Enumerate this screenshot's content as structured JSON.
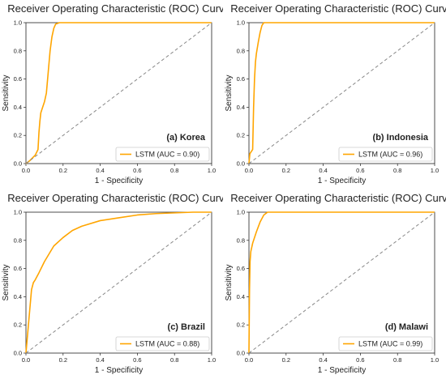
{
  "chart_data": [
    {
      "type": "line",
      "title": "Receiver Operating Characteristic (ROC) Curve",
      "xlabel": "1 - Specificity",
      "ylabel": "Sensitivity",
      "xlim": [
        0,
        1
      ],
      "ylim": [
        0,
        1
      ],
      "xticks": [
        "0.0",
        "0.2",
        "0.4",
        "0.6",
        "0.8",
        "1.0"
      ],
      "yticks": [
        "0.0",
        "0.2",
        "0.4",
        "0.6",
        "0.8",
        "1.0"
      ],
      "annotation": "(a) Korea",
      "legend_position": "bottom-right",
      "series": [
        {
          "name": "LSTM (AUC = 0.90)",
          "color": "#FFA500",
          "x": [
            0,
            0.02,
            0.05,
            0.065,
            0.07,
            0.075,
            0.08,
            0.09,
            0.1,
            0.11,
            0.12,
            0.13,
            0.14,
            0.15,
            0.16,
            0.18,
            0.2,
            0.3,
            1.0
          ],
          "y": [
            0,
            0.02,
            0.06,
            0.1,
            0.22,
            0.3,
            0.36,
            0.4,
            0.44,
            0.5,
            0.65,
            0.8,
            0.9,
            0.96,
            0.99,
            1.0,
            1.0,
            1.0,
            1.0
          ]
        },
        {
          "name": "",
          "color": "#888888",
          "style": "dashed",
          "x": [
            0,
            1
          ],
          "y": [
            0,
            1
          ]
        }
      ]
    },
    {
      "type": "line",
      "title": "Receiver Operating Characteristic (ROC) Curve",
      "xlabel": "1 - Specificity",
      "ylabel": "Sensitivity",
      "xlim": [
        0,
        1
      ],
      "ylim": [
        0,
        1
      ],
      "xticks": [
        "0.0",
        "0.2",
        "0.4",
        "0.6",
        "0.8",
        "1.0"
      ],
      "yticks": [
        "0.0",
        "0.2",
        "0.4",
        "0.6",
        "0.8",
        "1.0"
      ],
      "annotation": "(b) Indonesia",
      "legend_position": "bottom-right",
      "series": [
        {
          "name": "LSTM (AUC = 0.96)",
          "color": "#FFA500",
          "x": [
            0,
            0.005,
            0.01,
            0.02,
            0.025,
            0.03,
            0.035,
            0.04,
            0.05,
            0.06,
            0.07,
            0.08,
            0.1,
            1.0
          ],
          "y": [
            0,
            0.07,
            0.08,
            0.1,
            0.4,
            0.6,
            0.72,
            0.78,
            0.86,
            0.93,
            0.98,
            1.0,
            1.0,
            1.0
          ]
        },
        {
          "name": "",
          "color": "#888888",
          "style": "dashed",
          "x": [
            0,
            1
          ],
          "y": [
            0,
            1
          ]
        }
      ]
    },
    {
      "type": "line",
      "title": "Receiver Operating Characteristic (ROC) Curve",
      "xlabel": "1 - Specificity",
      "ylabel": "Sensitivity",
      "xlim": [
        0,
        1
      ],
      "ylim": [
        0,
        1
      ],
      "xticks": [
        "0.0",
        "0.2",
        "0.4",
        "0.6",
        "0.8",
        "1.0"
      ],
      "yticks": [
        "0.0",
        "0.2",
        "0.4",
        "0.6",
        "0.8",
        "1.0"
      ],
      "annotation": "(c) Brazil",
      "legend_position": "bottom-right",
      "series": [
        {
          "name": "LSTM (AUC = 0.88)",
          "color": "#FFA500",
          "x": [
            0,
            0.01,
            0.02,
            0.03,
            0.04,
            0.05,
            0.07,
            0.1,
            0.15,
            0.2,
            0.25,
            0.3,
            0.4,
            0.5,
            0.6,
            0.7,
            0.8,
            0.9,
            1.0
          ],
          "y": [
            0,
            0.15,
            0.3,
            0.45,
            0.5,
            0.52,
            0.57,
            0.65,
            0.76,
            0.82,
            0.87,
            0.9,
            0.94,
            0.96,
            0.98,
            0.99,
            0.995,
            1.0,
            1.0
          ]
        },
        {
          "name": "",
          "color": "#888888",
          "style": "dashed",
          "x": [
            0,
            1
          ],
          "y": [
            0,
            1
          ]
        }
      ]
    },
    {
      "type": "line",
      "title": "Receiver Operating Characteristic (ROC) Curve",
      "xlabel": "1 - Specificity",
      "ylabel": "Sensitivity",
      "xlim": [
        0,
        1
      ],
      "ylim": [
        0,
        1
      ],
      "xticks": [
        "0.0",
        "0.2",
        "0.4",
        "0.6",
        "0.8",
        "1.0"
      ],
      "yticks": [
        "0.0",
        "0.2",
        "0.4",
        "0.6",
        "0.8",
        "1.0"
      ],
      "annotation": "(d) Malawi",
      "legend_position": "bottom-right",
      "series": [
        {
          "name": "LSTM (AUC = 0.99)",
          "color": "#FFA500",
          "x": [
            0,
            0.003,
            0.006,
            0.01,
            0.02,
            0.04,
            0.06,
            0.08,
            0.1,
            0.12,
            0.2,
            1.0
          ],
          "y": [
            0,
            0.45,
            0.65,
            0.72,
            0.78,
            0.86,
            0.93,
            0.98,
            1.0,
            1.0,
            1.0,
            1.0
          ]
        },
        {
          "name": "",
          "color": "#888888",
          "style": "dashed",
          "x": [
            0,
            1
          ],
          "y": [
            0,
            1
          ]
        }
      ]
    }
  ]
}
